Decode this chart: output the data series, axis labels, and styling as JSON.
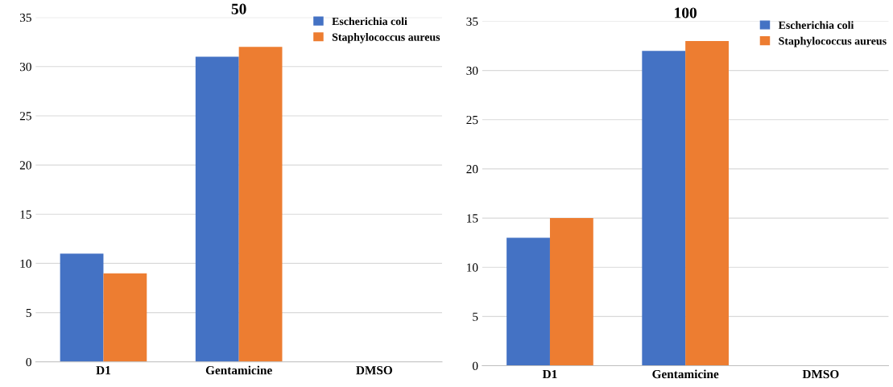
{
  "chart_data": [
    {
      "type": "bar",
      "title": "50",
      "categories": [
        "D1",
        "Gentamicine",
        "DMSO"
      ],
      "series": [
        {
          "name": "Escherichia coli",
          "color": "#4472c4",
          "values": [
            11,
            31,
            0
          ]
        },
        {
          "name": "Staphylococcus aureus",
          "color": "#ed7d31",
          "values": [
            9,
            32,
            0
          ]
        }
      ],
      "ylim": [
        0,
        35
      ],
      "yticks": [
        0,
        5,
        10,
        15,
        20,
        25,
        30,
        35
      ],
      "grid": "y",
      "legend": "top right"
    },
    {
      "type": "bar",
      "title": "100",
      "categories": [
        "D1",
        "Gentamicine",
        "DMSO"
      ],
      "series": [
        {
          "name": "Escherichia coli",
          "color": "#4472c4",
          "values": [
            13,
            32,
            0
          ]
        },
        {
          "name": "Staphylococcus aureus",
          "color": "#ed7d31",
          "values": [
            15,
            33,
            0
          ]
        }
      ],
      "ylim": [
        0,
        35
      ],
      "yticks": [
        0,
        5,
        10,
        15,
        20,
        25,
        30,
        35
      ],
      "grid": "y",
      "legend": "top right"
    }
  ]
}
